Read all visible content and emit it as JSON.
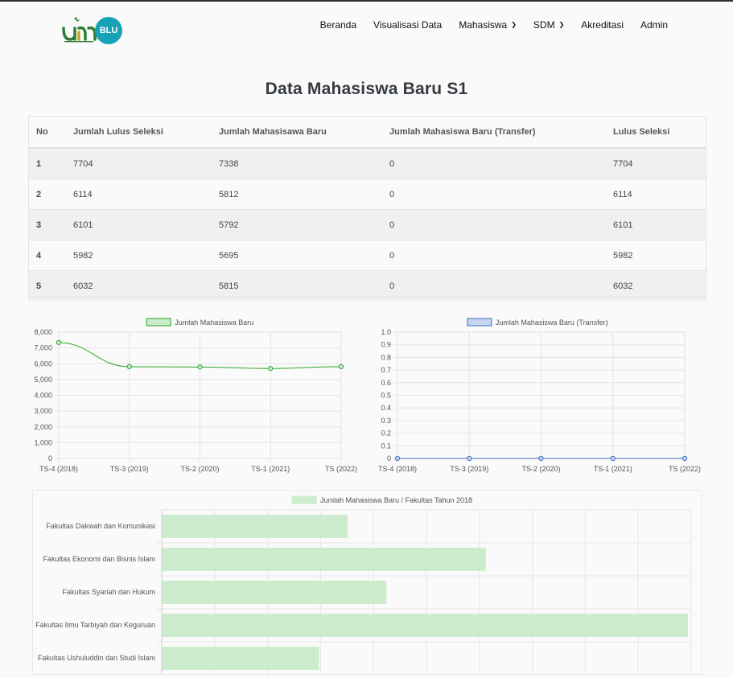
{
  "header": {
    "logo_text": "BLU",
    "nav": [
      {
        "label": "Beranda",
        "dropdown": false
      },
      {
        "label": "Visualisasi Data",
        "dropdown": false
      },
      {
        "label": "Mahasiswa",
        "dropdown": true
      },
      {
        "label": "SDM",
        "dropdown": true
      },
      {
        "label": "Akreditasi",
        "dropdown": false
      },
      {
        "label": "Admin",
        "dropdown": false
      }
    ]
  },
  "page_title": "Data Mahasiswa Baru S1",
  "table": {
    "headers": [
      "No",
      "Jumlah Lulus Seleksi",
      "Jumlah Mahasisawa Baru",
      "Jumlah Mahasiswa Baru (Transfer)",
      "Lulus Seleksi"
    ],
    "rows": [
      [
        "1",
        "7704",
        "7338",
        "0",
        "7704"
      ],
      [
        "2",
        "6114",
        "5812",
        "0",
        "6114"
      ],
      [
        "3",
        "6101",
        "5792",
        "0",
        "6101"
      ],
      [
        "4",
        "5982",
        "5695",
        "0",
        "5982"
      ],
      [
        "5",
        "6032",
        "5815",
        "0",
        "6032"
      ]
    ]
  },
  "colors": {
    "green_line": "#2aa52a",
    "green_fill": "#c9ebc9",
    "blue_line": "#3a6fbf",
    "blue_fill": "#c7d6ef",
    "bar_fill": "#cdebcd"
  },
  "chart_data": [
    {
      "type": "line",
      "legend": "Jumlah Mahasiswa Baru",
      "categories": [
        "TS-4 (2018)",
        "TS-3 (2019)",
        "TS-2 (2020)",
        "TS-1 (2021)",
        "TS (2022)"
      ],
      "series": [
        {
          "name": "Jumlah Mahasiswa Baru",
          "values": [
            7338,
            5812,
            5792,
            5695,
            5815
          ]
        }
      ],
      "yticks": [
        "0",
        "1,000",
        "2,000",
        "3,000",
        "4,000",
        "5,000",
        "6,000",
        "7,000",
        "8,000"
      ],
      "ylim": [
        0,
        8000
      ],
      "grid": true,
      "legend_position": "top"
    },
    {
      "type": "line",
      "legend": "Jumlah Mahasiswa Baru (Transfer)",
      "categories": [
        "TS-4 (2018)",
        "TS-3 (2019)",
        "TS-2 (2020)",
        "TS-1 (2021)",
        "TS (2022)"
      ],
      "series": [
        {
          "name": "Jumlah Mahasiswa Baru (Transfer)",
          "values": [
            0,
            0,
            0,
            0,
            0
          ]
        }
      ],
      "yticks": [
        "0",
        "0.1",
        "0.2",
        "0.3",
        "0.4",
        "0.5",
        "0.6",
        "0.7",
        "0.8",
        "0.9",
        "1.0"
      ],
      "ylim": [
        0,
        1
      ],
      "grid": true,
      "legend_position": "top"
    },
    {
      "type": "bar",
      "orientation": "horizontal",
      "legend": "Jumlah Mahasiswa Baru / Fakultas Tahun 2018",
      "categories": [
        "Fakultas Dakwah dan Komunikasi",
        "Fakultas Ekonomi dan Bisnis Islam",
        "Fakultas Syariah dan Hukum",
        "Fakultas Ilmu Tarbiyah dan Keguruan",
        "Fakultas Ushuluddin dan Studi Islam"
      ],
      "series": [
        {
          "name": "Jumlah Mahasiswa Baru / Fakultas Tahun 2018",
          "values": [
            0.353,
            0.616,
            0.427,
            1.0,
            0.299
          ]
        }
      ],
      "grid": true,
      "legend_position": "top"
    }
  ]
}
